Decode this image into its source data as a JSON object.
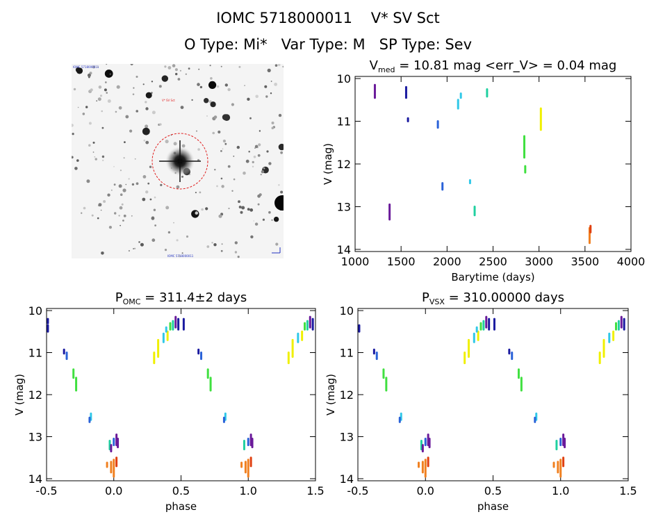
{
  "header": {
    "line1": "IOMC 5718000011    V* SV Sct",
    "line2": "O Type: Mi*   Var Type: M   SP Type: Sev"
  },
  "sky_image": {
    "label_top_left": "IOMC 5718000011",
    "label_target": "V* SV Sct",
    "label_bottom_center": "IOMC 5718000011"
  },
  "colors": {
    "violet": "#6a1a9a",
    "navy": "#1a1aa0",
    "blue": "#2a62d8",
    "cyan": "#30c8e8",
    "teal": "#20d0a0",
    "green": "#40e040",
    "yellow": "#f0f000",
    "orange": "#f08020",
    "red": "#e04010"
  },
  "chart_data": [
    {
      "type": "scatter",
      "id": "lightcurve",
      "title_main": "V",
      "title_sub": "med",
      "title_rest": " = 10.81 mag <err_V> = 0.04 mag",
      "xlabel": "Barytime (days)",
      "ylabel": "V (mag)",
      "xlim": [
        1000,
        4000
      ],
      "ylim": [
        14.05,
        9.95
      ],
      "xticks": [
        1000,
        1500,
        2000,
        2500,
        3000,
        3500,
        4000
      ],
      "yticks": [
        10,
        11,
        12,
        13,
        14
      ],
      "segments": [
        {
          "x": 1215,
          "y1": 10.15,
          "y2": 10.45,
          "color": "violet"
        },
        {
          "x": 1375,
          "y1": 12.95,
          "y2": 13.3,
          "color": "violet"
        },
        {
          "x": 1555,
          "y1": 10.2,
          "y2": 10.45,
          "color": "navy"
        },
        {
          "x": 1575,
          "y1": 10.93,
          "y2": 11.0,
          "color": "navy"
        },
        {
          "x": 1900,
          "y1": 11.0,
          "y2": 11.15,
          "color": "blue"
        },
        {
          "x": 1950,
          "y1": 12.45,
          "y2": 12.6,
          "color": "blue"
        },
        {
          "x": 2120,
          "y1": 10.5,
          "y2": 10.7,
          "color": "cyan"
        },
        {
          "x": 2150,
          "y1": 10.35,
          "y2": 10.45,
          "color": "cyan"
        },
        {
          "x": 2250,
          "y1": 12.38,
          "y2": 12.45,
          "color": "cyan"
        },
        {
          "x": 2300,
          "y1": 13.0,
          "y2": 13.2,
          "color": "teal"
        },
        {
          "x": 2435,
          "y1": 10.25,
          "y2": 10.42,
          "color": "teal"
        },
        {
          "x": 2840,
          "y1": 11.35,
          "y2": 11.85,
          "color": "green"
        },
        {
          "x": 2850,
          "y1": 12.05,
          "y2": 12.2,
          "color": "green"
        },
        {
          "x": 3020,
          "y1": 10.7,
          "y2": 11.2,
          "color": "yellow"
        },
        {
          "x": 3550,
          "y1": 13.5,
          "y2": 13.85,
          "color": "orange"
        },
        {
          "x": 3560,
          "y1": 13.45,
          "y2": 13.6,
          "color": "red"
        }
      ]
    },
    {
      "type": "scatter",
      "id": "phase_omc",
      "title_main": "P",
      "title_sub": "OMC",
      "title_rest": " = 311.4±2 days",
      "xlabel": "phase",
      "ylabel": "V (mag)",
      "xlim": [
        -0.5,
        1.5
      ],
      "ylim": [
        14.05,
        9.95
      ],
      "xticks": [
        -0.5,
        0.0,
        0.5,
        1.0,
        1.5
      ],
      "xticklabels": [
        "-0.5",
        "0.0",
        "0.5",
        "1.0",
        "1.5"
      ],
      "yticks": [
        10,
        11,
        12,
        13,
        14
      ],
      "segments": [
        {
          "x": 0.46,
          "y1": 10.15,
          "y2": 10.4,
          "color": "violet"
        },
        {
          "x": 0.48,
          "y1": 10.2,
          "y2": 10.45,
          "color": "navy"
        },
        {
          "x": 0.44,
          "y1": 10.25,
          "y2": 10.45,
          "color": "teal"
        },
        {
          "x": 0.42,
          "y1": 10.3,
          "y2": 10.45,
          "color": "green"
        },
        {
          "x": 0.52,
          "y1": 10.2,
          "y2": 10.45,
          "color": "navy"
        },
        {
          "x": 0.4,
          "y1": 10.5,
          "y2": 10.7,
          "color": "yellow"
        },
        {
          "x": 0.33,
          "y1": 10.7,
          "y2": 11.1,
          "color": "yellow"
        },
        {
          "x": 0.3,
          "y1": 11.0,
          "y2": 11.25,
          "color": "yellow"
        },
        {
          "x": 0.37,
          "y1": 10.55,
          "y2": 10.75,
          "color": "cyan"
        },
        {
          "x": 0.39,
          "y1": 10.4,
          "y2": 10.5,
          "color": "cyan"
        },
        {
          "x": -0.37,
          "y1": 10.93,
          "y2": 11.02,
          "color": "navy"
        },
        {
          "x": -0.35,
          "y1": 11.0,
          "y2": 11.15,
          "color": "blue"
        },
        {
          "x": -0.3,
          "y1": 11.4,
          "y2": 11.6,
          "color": "green"
        },
        {
          "x": -0.28,
          "y1": 11.6,
          "y2": 11.9,
          "color": "green"
        },
        {
          "x": -0.17,
          "y1": 12.45,
          "y2": 12.6,
          "color": "cyan"
        },
        {
          "x": -0.18,
          "y1": 12.55,
          "y2": 12.65,
          "color": "blue"
        },
        {
          "x": -0.49,
          "y1": 10.35,
          "y2": 10.5,
          "color": "navy"
        },
        {
          "x": -0.49,
          "y1": 10.2,
          "y2": 10.3,
          "color": "navy"
        },
        {
          "x": -0.03,
          "y1": 13.1,
          "y2": 13.3,
          "color": "teal"
        },
        {
          "x": 0.0,
          "y1": 13.05,
          "y2": 13.2,
          "color": "blue"
        },
        {
          "x": 0.02,
          "y1": 12.95,
          "y2": 13.2,
          "color": "violet"
        },
        {
          "x": 0.03,
          "y1": 13.05,
          "y2": 13.25,
          "color": "violet"
        },
        {
          "x": -0.02,
          "y1": 13.2,
          "y2": 13.35,
          "color": "violet"
        },
        {
          "x": -0.02,
          "y1": 13.6,
          "y2": 13.85,
          "color": "orange"
        },
        {
          "x": 0.0,
          "y1": 13.55,
          "y2": 13.95,
          "color": "orange"
        },
        {
          "x": 0.02,
          "y1": 13.5,
          "y2": 13.7,
          "color": "red"
        },
        {
          "x": -0.05,
          "y1": 13.62,
          "y2": 13.72,
          "color": "orange"
        },
        {
          "x": 1.46,
          "y1": 10.15,
          "y2": 10.4,
          "color": "violet"
        },
        {
          "x": 1.48,
          "y1": 10.2,
          "y2": 10.45,
          "color": "navy"
        },
        {
          "x": 1.44,
          "y1": 10.25,
          "y2": 10.45,
          "color": "teal"
        },
        {
          "x": 1.42,
          "y1": 10.3,
          "y2": 10.45,
          "color": "green"
        },
        {
          "x": 1.4,
          "y1": 10.5,
          "y2": 10.7,
          "color": "yellow"
        },
        {
          "x": 1.33,
          "y1": 10.7,
          "y2": 11.1,
          "color": "yellow"
        },
        {
          "x": 1.3,
          "y1": 11.0,
          "y2": 11.25,
          "color": "yellow"
        },
        {
          "x": 1.37,
          "y1": 10.55,
          "y2": 10.75,
          "color": "cyan"
        },
        {
          "x": 0.63,
          "y1": 10.93,
          "y2": 11.02,
          "color": "navy"
        },
        {
          "x": 0.65,
          "y1": 11.0,
          "y2": 11.15,
          "color": "blue"
        },
        {
          "x": 0.7,
          "y1": 11.4,
          "y2": 11.6,
          "color": "green"
        },
        {
          "x": 0.72,
          "y1": 11.6,
          "y2": 11.9,
          "color": "green"
        },
        {
          "x": 0.83,
          "y1": 12.45,
          "y2": 12.6,
          "color": "cyan"
        },
        {
          "x": 0.82,
          "y1": 12.55,
          "y2": 12.65,
          "color": "blue"
        },
        {
          "x": 0.97,
          "y1": 13.1,
          "y2": 13.3,
          "color": "teal"
        },
        {
          "x": 1.0,
          "y1": 13.05,
          "y2": 13.2,
          "color": "blue"
        },
        {
          "x": 1.02,
          "y1": 12.95,
          "y2": 13.2,
          "color": "violet"
        },
        {
          "x": 1.03,
          "y1": 13.05,
          "y2": 13.25,
          "color": "violet"
        },
        {
          "x": 0.98,
          "y1": 13.6,
          "y2": 13.85,
          "color": "orange"
        },
        {
          "x": 1.0,
          "y1": 13.55,
          "y2": 13.95,
          "color": "orange"
        },
        {
          "x": 1.02,
          "y1": 13.5,
          "y2": 13.7,
          "color": "red"
        },
        {
          "x": 0.95,
          "y1": 13.62,
          "y2": 13.72,
          "color": "orange"
        }
      ]
    },
    {
      "type": "scatter",
      "id": "phase_vsx",
      "title_main": "P",
      "title_sub": "VSX",
      "title_rest": " = 310.00000 days",
      "xlabel": "phase",
      "ylabel": "V (mag)",
      "xlim": [
        -0.5,
        1.5
      ],
      "ylim": [
        14.05,
        9.95
      ],
      "xticks": [
        -0.5,
        0.0,
        0.5,
        1.0,
        1.5
      ],
      "xticklabels": [
        "-0.5",
        "0.0",
        "0.5",
        "1.0",
        "1.5"
      ],
      "yticks": [
        10,
        11,
        12,
        13,
        14
      ],
      "segments": [
        {
          "x": 0.45,
          "y1": 10.15,
          "y2": 10.4,
          "color": "violet"
        },
        {
          "x": 0.47,
          "y1": 10.2,
          "y2": 10.45,
          "color": "navy"
        },
        {
          "x": 0.43,
          "y1": 10.25,
          "y2": 10.45,
          "color": "teal"
        },
        {
          "x": 0.41,
          "y1": 10.3,
          "y2": 10.45,
          "color": "green"
        },
        {
          "x": 0.51,
          "y1": 10.2,
          "y2": 10.45,
          "color": "navy"
        },
        {
          "x": 0.39,
          "y1": 10.5,
          "y2": 10.7,
          "color": "yellow"
        },
        {
          "x": 0.32,
          "y1": 10.7,
          "y2": 11.1,
          "color": "yellow"
        },
        {
          "x": 0.29,
          "y1": 11.0,
          "y2": 11.25,
          "color": "yellow"
        },
        {
          "x": 0.36,
          "y1": 10.55,
          "y2": 10.75,
          "color": "cyan"
        },
        {
          "x": 0.38,
          "y1": 10.4,
          "y2": 10.5,
          "color": "cyan"
        },
        {
          "x": -0.38,
          "y1": 10.93,
          "y2": 11.02,
          "color": "navy"
        },
        {
          "x": -0.36,
          "y1": 11.0,
          "y2": 11.15,
          "color": "blue"
        },
        {
          "x": -0.31,
          "y1": 11.4,
          "y2": 11.6,
          "color": "green"
        },
        {
          "x": -0.29,
          "y1": 11.6,
          "y2": 11.9,
          "color": "green"
        },
        {
          "x": -0.18,
          "y1": 12.45,
          "y2": 12.6,
          "color": "cyan"
        },
        {
          "x": -0.19,
          "y1": 12.55,
          "y2": 12.65,
          "color": "blue"
        },
        {
          "x": -0.49,
          "y1": 10.35,
          "y2": 10.5,
          "color": "navy"
        },
        {
          "x": -0.03,
          "y1": 13.1,
          "y2": 13.3,
          "color": "teal"
        },
        {
          "x": 0.0,
          "y1": 13.05,
          "y2": 13.2,
          "color": "blue"
        },
        {
          "x": 0.02,
          "y1": 12.95,
          "y2": 13.2,
          "color": "violet"
        },
        {
          "x": 0.03,
          "y1": 13.05,
          "y2": 13.25,
          "color": "violet"
        },
        {
          "x": -0.02,
          "y1": 13.2,
          "y2": 13.35,
          "color": "violet"
        },
        {
          "x": -0.02,
          "y1": 13.6,
          "y2": 13.85,
          "color": "orange"
        },
        {
          "x": 0.0,
          "y1": 13.55,
          "y2": 13.95,
          "color": "orange"
        },
        {
          "x": 0.02,
          "y1": 13.5,
          "y2": 13.7,
          "color": "red"
        },
        {
          "x": -0.05,
          "y1": 13.62,
          "y2": 13.72,
          "color": "orange"
        },
        {
          "x": 1.45,
          "y1": 10.15,
          "y2": 10.4,
          "color": "violet"
        },
        {
          "x": 1.47,
          "y1": 10.2,
          "y2": 10.45,
          "color": "navy"
        },
        {
          "x": 1.43,
          "y1": 10.25,
          "y2": 10.45,
          "color": "teal"
        },
        {
          "x": 1.41,
          "y1": 10.3,
          "y2": 10.45,
          "color": "green"
        },
        {
          "x": 1.39,
          "y1": 10.5,
          "y2": 10.7,
          "color": "yellow"
        },
        {
          "x": 1.32,
          "y1": 10.7,
          "y2": 11.1,
          "color": "yellow"
        },
        {
          "x": 1.29,
          "y1": 11.0,
          "y2": 11.25,
          "color": "yellow"
        },
        {
          "x": 1.36,
          "y1": 10.55,
          "y2": 10.75,
          "color": "cyan"
        },
        {
          "x": 0.62,
          "y1": 10.93,
          "y2": 11.02,
          "color": "navy"
        },
        {
          "x": 0.64,
          "y1": 11.0,
          "y2": 11.15,
          "color": "blue"
        },
        {
          "x": 0.69,
          "y1": 11.4,
          "y2": 11.6,
          "color": "green"
        },
        {
          "x": 0.71,
          "y1": 11.6,
          "y2": 11.9,
          "color": "green"
        },
        {
          "x": 0.82,
          "y1": 12.45,
          "y2": 12.6,
          "color": "cyan"
        },
        {
          "x": 0.81,
          "y1": 12.55,
          "y2": 12.65,
          "color": "blue"
        },
        {
          "x": 0.97,
          "y1": 13.1,
          "y2": 13.3,
          "color": "teal"
        },
        {
          "x": 1.0,
          "y1": 13.05,
          "y2": 13.2,
          "color": "blue"
        },
        {
          "x": 1.02,
          "y1": 12.95,
          "y2": 13.2,
          "color": "violet"
        },
        {
          "x": 1.03,
          "y1": 13.05,
          "y2": 13.25,
          "color": "violet"
        },
        {
          "x": 0.98,
          "y1": 13.6,
          "y2": 13.85,
          "color": "orange"
        },
        {
          "x": 1.0,
          "y1": 13.55,
          "y2": 13.95,
          "color": "orange"
        },
        {
          "x": 1.02,
          "y1": 13.5,
          "y2": 13.7,
          "color": "red"
        },
        {
          "x": 0.95,
          "y1": 13.62,
          "y2": 13.72,
          "color": "orange"
        }
      ]
    }
  ]
}
